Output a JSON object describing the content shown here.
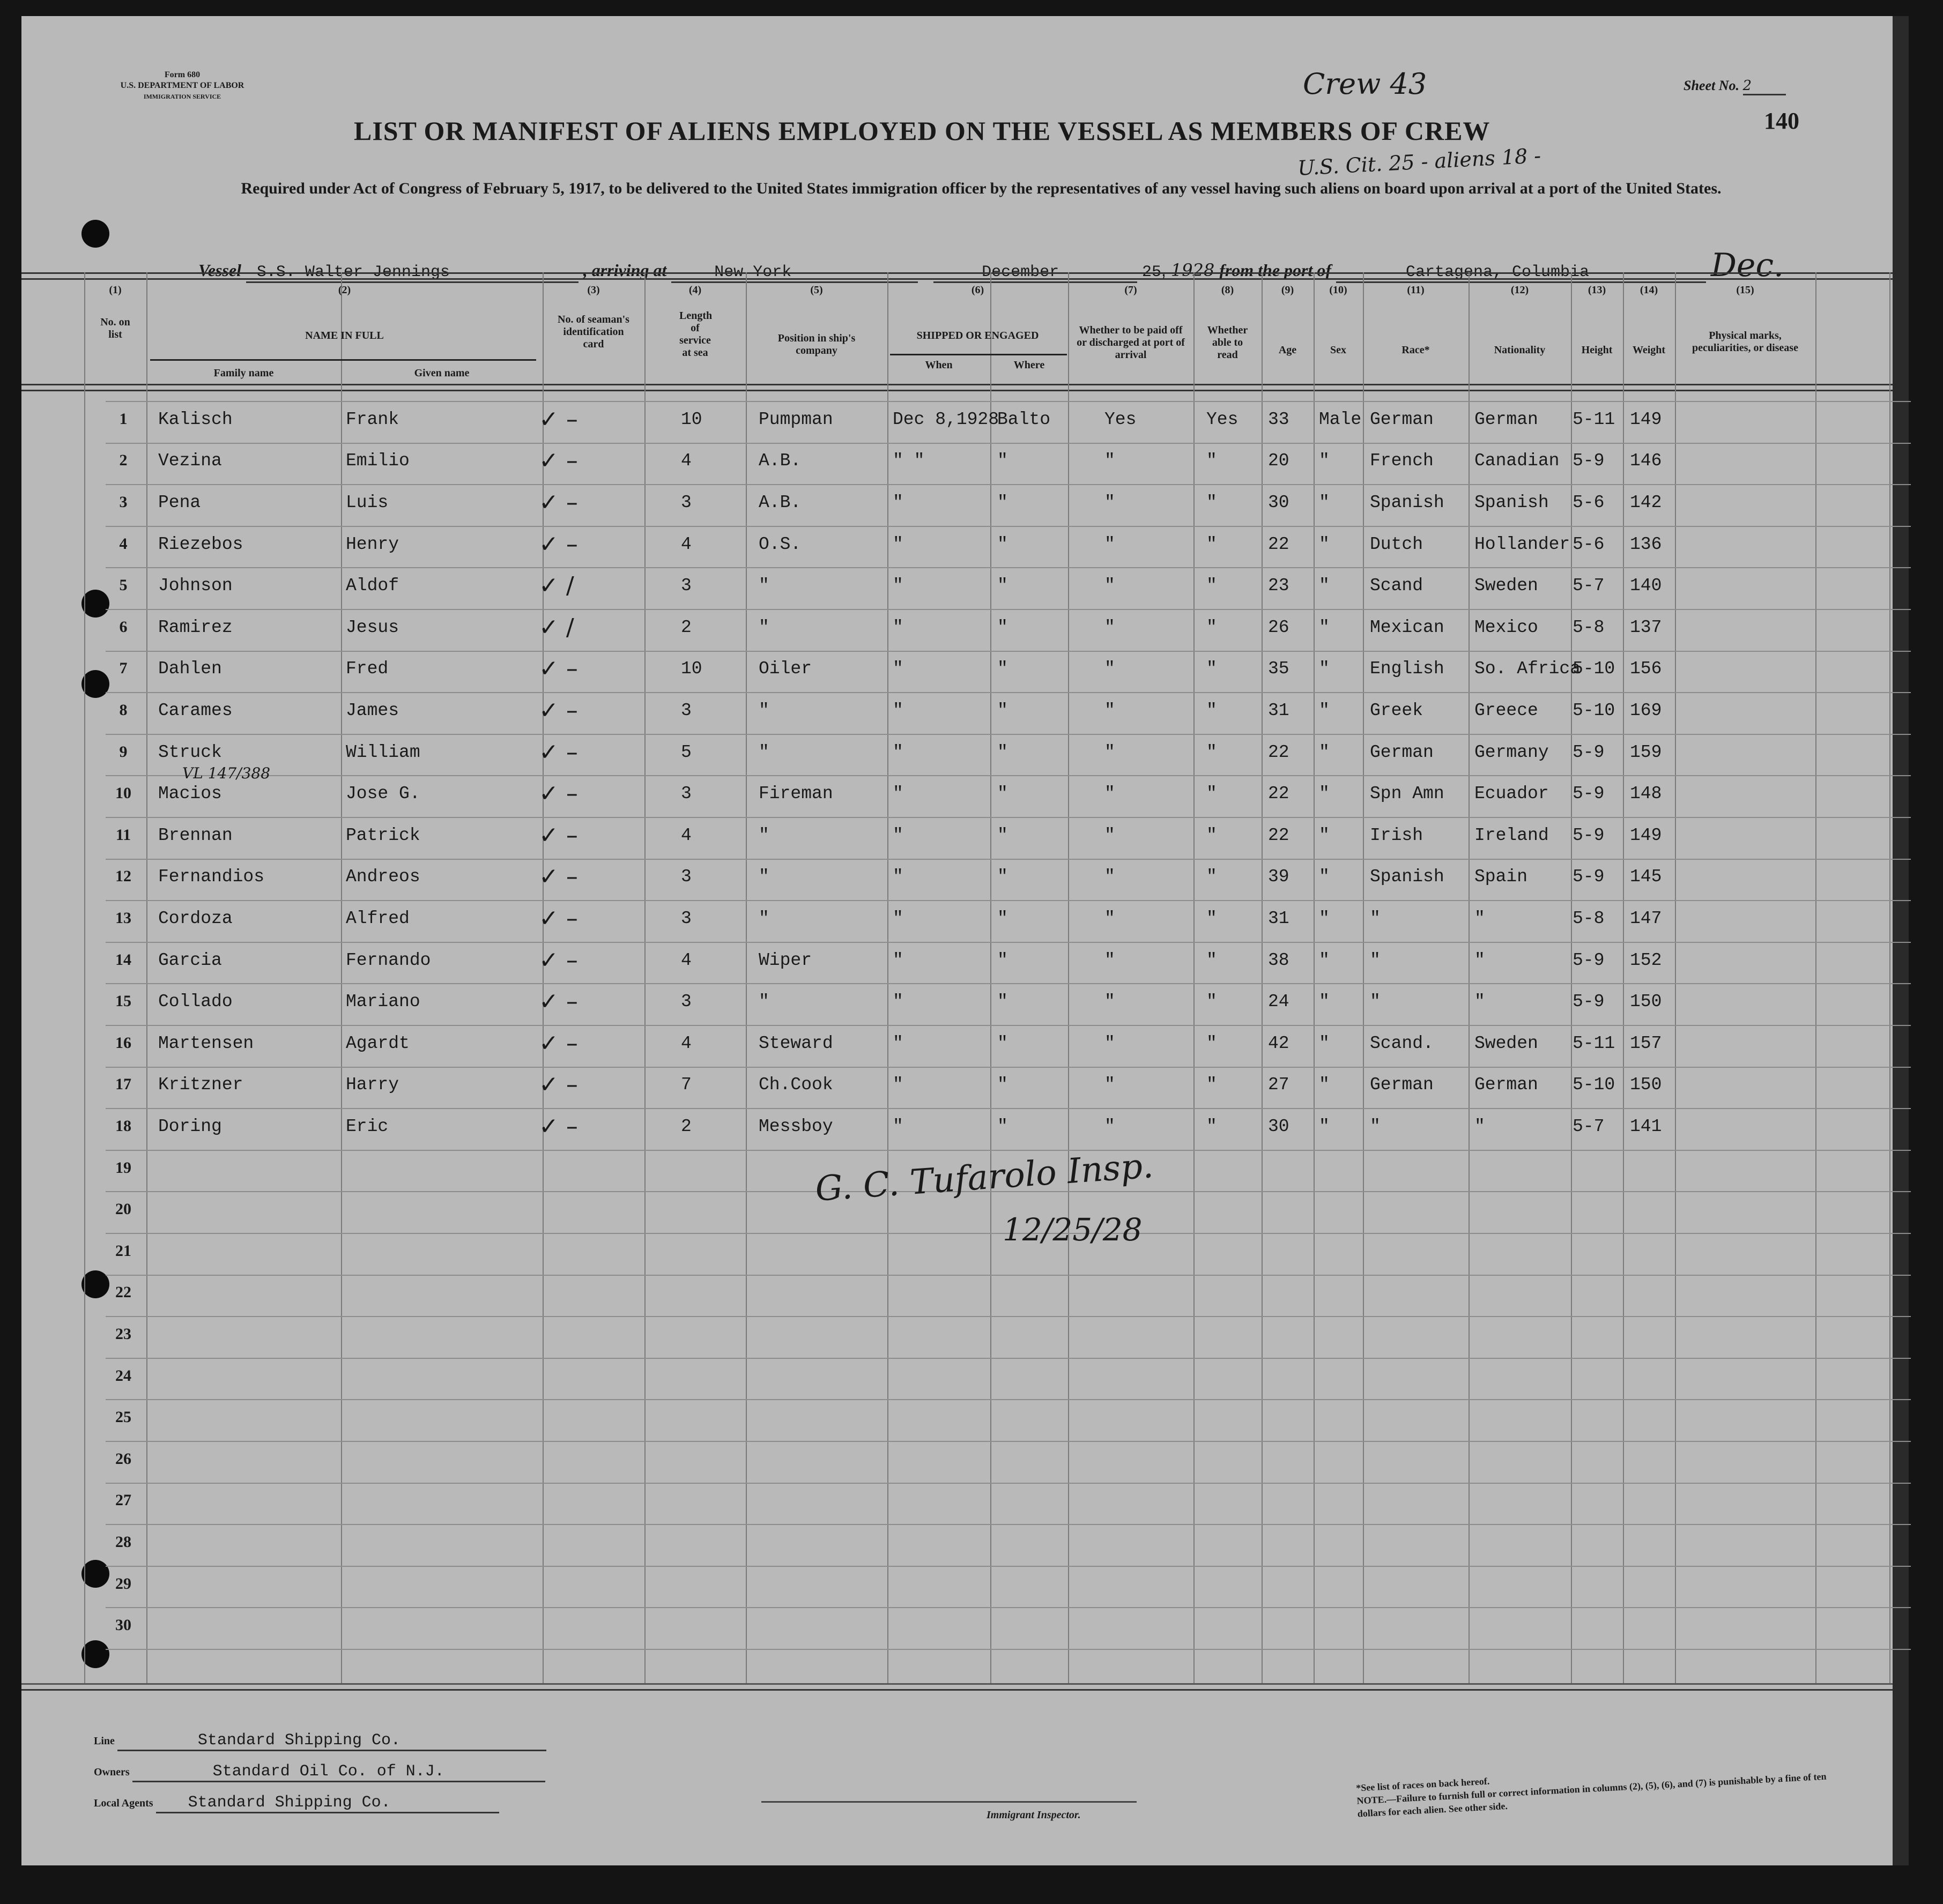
{
  "form": {
    "form_no": "Form 680",
    "department": "U.S. DEPARTMENT OF LABOR",
    "service": "IMMIGRATION SERVICE",
    "crew_note": "Crew 43",
    "sheet_label": "Sheet No.",
    "sheet_no": "2",
    "stamp_no": "140",
    "title": "LIST OR MANIFEST OF ALIENS EMPLOYED ON THE VESSEL AS MEMBERS OF CREW",
    "count_note": "U.S. Cit. 25 - aliens 18 -",
    "subtitle": "Required under Act of Congress of February 5, 1917, to be delivered to the United States immigration officer by the representatives of any vessel having such aliens on board upon arrival at a port of the United States."
  },
  "voyage": {
    "vessel_label": "Vessel",
    "vessel": "S.S. Walter Jennings",
    "arriving_label": ", arriving at",
    "arriving": "New York",
    "month": "December",
    "day": "25",
    "year": "1928",
    "from_label": "from the port of",
    "port": "Cartagena, Columbia",
    "month_note": "Dec."
  },
  "columns": {
    "nums": [
      "(1)",
      "(2)",
      "(3)",
      "(4)",
      "(5)",
      "(6)",
      "(7)",
      "(8)",
      "(9)",
      "(10)",
      "(11)",
      "(12)",
      "(13)",
      "(14)",
      "(15)"
    ],
    "no_on_list": "No. on list",
    "name_in_full": "NAME IN FULL",
    "family_name": "Family name",
    "given_name": "Given name",
    "id_card": "No. of seaman's identification card",
    "length_service": "Length of service at sea",
    "position": "Position in ship's company",
    "shipped": "SHIPPED OR ENGAGED",
    "when": "When",
    "where": "Where",
    "paid_off": "Whether to be paid off or discharged at port of arrival",
    "able_read": "Whether able to read",
    "age": "Age",
    "sex": "Sex",
    "race": "Race*",
    "nationality": "Nationality",
    "height": "Height",
    "weight": "Weight",
    "physical": "Physical marks, peculiarities, or disease"
  },
  "rows": [
    {
      "no": "1",
      "family": "Kalisch",
      "given": "Frank",
      "id": "✓ –",
      "service": "10",
      "position": "Pumpman",
      "when": "Dec 8,1928",
      "where": "Balto",
      "paid": "Yes",
      "read": "Yes",
      "age": "33",
      "sex": "Male",
      "race": "German",
      "nationality": "German",
      "height": "5-11",
      "weight": "149"
    },
    {
      "no": "2",
      "family": "Vezina",
      "given": "Emilio",
      "id": "✓ –",
      "service": "4",
      "position": "A.B.",
      "when": "\"  \"",
      "where": "\"",
      "paid": "\"",
      "read": "\"",
      "age": "20",
      "sex": "\"",
      "race": "French",
      "nationality": "Canadian",
      "height": "5-9",
      "weight": "146"
    },
    {
      "no": "3",
      "family": "Pena",
      "given": "Luis",
      "id": "✓ –",
      "service": "3",
      "position": "A.B.",
      "when": "\"",
      "where": "\"",
      "paid": "\"",
      "read": "\"",
      "age": "30",
      "sex": "\"",
      "race": "Spanish",
      "nationality": "Spanish",
      "height": "5-6",
      "weight": "142"
    },
    {
      "no": "4",
      "family": "Riezebos",
      "given": "Henry",
      "id": "✓ –",
      "service": "4",
      "position": "O.S.",
      "when": "\"",
      "where": "\"",
      "paid": "\"",
      "read": "\"",
      "age": "22",
      "sex": "\"",
      "race": "Dutch",
      "nationality": "Hollander",
      "height": "5-6",
      "weight": "136"
    },
    {
      "no": "5",
      "family": "Johnson",
      "given": "Aldof",
      "id": "✓ /",
      "service": "3",
      "position": "\"",
      "when": "\"",
      "where": "\"",
      "paid": "\"",
      "read": "\"",
      "age": "23",
      "sex": "\"",
      "race": "Scand",
      "nationality": "Sweden",
      "height": "5-7",
      "weight": "140"
    },
    {
      "no": "6",
      "family": "Ramirez",
      "given": "Jesus",
      "id": "✓ /",
      "service": "2",
      "position": "\"",
      "when": "\"",
      "where": "\"",
      "paid": "\"",
      "read": "\"",
      "age": "26",
      "sex": "\"",
      "race": "Mexican",
      "nationality": "Mexico",
      "height": "5-8",
      "weight": "137"
    },
    {
      "no": "7",
      "family": "Dahlen",
      "given": "Fred",
      "id": "✓ –",
      "service": "10",
      "position": "Oiler",
      "when": "\"",
      "where": "\"",
      "paid": "\"",
      "read": "\"",
      "age": "35",
      "sex": "\"",
      "race": "English",
      "nationality": "So. Africa",
      "height": "5-10",
      "weight": "156"
    },
    {
      "no": "8",
      "family": "Carames",
      "given": "James",
      "id": "✓ –",
      "service": "3",
      "position": "\"",
      "when": "\"",
      "where": "\"",
      "paid": "\"",
      "read": "\"",
      "age": "31",
      "sex": "\"",
      "race": "Greek",
      "nationality": "Greece",
      "height": "5-10",
      "weight": "169"
    },
    {
      "no": "9",
      "family": "Struck",
      "given": "William",
      "id": "✓ –",
      "service": "5",
      "position": "\"",
      "when": "\"",
      "where": "\"",
      "paid": "\"",
      "read": "\"",
      "age": "22",
      "sex": "\"",
      "race": "German",
      "nationality": "Germany",
      "height": "5-9",
      "weight": "159"
    },
    {
      "no": "10",
      "family": "Macios",
      "given": "Jose G.",
      "id": "✓ –",
      "service": "3",
      "position": "Fireman",
      "when": "\"",
      "where": "\"",
      "paid": "\"",
      "read": "\"",
      "age": "22",
      "sex": "\"",
      "race": "Spn Amn",
      "nationality": "Ecuador",
      "height": "5-9",
      "weight": "148",
      "note": "VL 147/388"
    },
    {
      "no": "11",
      "family": "Brennan",
      "given": "Patrick",
      "id": "✓ –",
      "service": "4",
      "position": "\"",
      "when": "\"",
      "where": "\"",
      "paid": "\"",
      "read": "\"",
      "age": "22",
      "sex": "\"",
      "race": "Irish",
      "nationality": "Ireland",
      "height": "5-9",
      "weight": "149"
    },
    {
      "no": "12",
      "family": "Fernandios",
      "given": "Andreos",
      "id": "✓ –",
      "service": "3",
      "position": "\"",
      "when": "\"",
      "where": "\"",
      "paid": "\"",
      "read": "\"",
      "age": "39",
      "sex": "\"",
      "race": "Spanish",
      "nationality": "Spain",
      "height": "5-9",
      "weight": "145"
    },
    {
      "no": "13",
      "family": "Cordoza",
      "given": "Alfred",
      "id": "✓ –",
      "service": "3",
      "position": "\"",
      "when": "\"",
      "where": "\"",
      "paid": "\"",
      "read": "\"",
      "age": "31",
      "sex": "\"",
      "race": "\"",
      "nationality": "\"",
      "height": "5-8",
      "weight": "147"
    },
    {
      "no": "14",
      "family": "Garcia",
      "given": "Fernando",
      "id": "✓ –",
      "service": "4",
      "position": "Wiper",
      "when": "\"",
      "where": "\"",
      "paid": "\"",
      "read": "\"",
      "age": "38",
      "sex": "\"",
      "race": "\"",
      "nationality": "\"",
      "height": "5-9",
      "weight": "152"
    },
    {
      "no": "15",
      "family": "Collado",
      "given": "Mariano",
      "id": "✓ –",
      "service": "3",
      "position": "\"",
      "when": "\"",
      "where": "\"",
      "paid": "\"",
      "read": "\"",
      "age": "24",
      "sex": "\"",
      "race": "\"",
      "nationality": "\"",
      "height": "5-9",
      "weight": "150"
    },
    {
      "no": "16",
      "family": "Martensen",
      "given": "Agardt",
      "id": "✓ –",
      "service": "4",
      "position": "Steward",
      "when": "\"",
      "where": "\"",
      "paid": "\"",
      "read": "\"",
      "age": "42",
      "sex": "\"",
      "race": "Scand.",
      "nationality": "Sweden",
      "height": "5-11",
      "weight": "157"
    },
    {
      "no": "17",
      "family": "Kritzner",
      "given": "Harry",
      "id": "✓ –",
      "service": "7",
      "position": "Ch.Cook",
      "when": "\"",
      "where": "\"",
      "paid": "\"",
      "read": "\"",
      "age": "27",
      "sex": "\"",
      "race": "German",
      "nationality": "German",
      "height": "5-10",
      "weight": "150"
    },
    {
      "no": "18",
      "family": "Doring",
      "given": "Eric",
      "id": "✓ –",
      "service": "2",
      "position": "Messboy",
      "when": "\"",
      "where": "\"",
      "paid": "\"",
      "read": "\"",
      "age": "30",
      "sex": "\"",
      "race": "\"",
      "nationality": "\"",
      "height": "5-7",
      "weight": "141"
    }
  ],
  "empty_row_numbers": [
    "19",
    "20",
    "21",
    "22",
    "23",
    "24",
    "25",
    "26",
    "27",
    "28",
    "29",
    "30"
  ],
  "signature": {
    "name": "G. C. Tufarolo Insp.",
    "date": "12/25/28"
  },
  "footer": {
    "line_label": "Line",
    "line": "Standard Shipping Co.",
    "owners_label": "Owners",
    "owners": "Standard Oil Co. of N.J.",
    "agents_label": "Local Agents",
    "agents": "Standard Shipping Co.",
    "inspector_label": "Immigrant Inspector.",
    "races_note": "*See list of races on back hereof.",
    "note": "NOTE.—Failure to furnish full or correct information in columns (2), (5), (6), and (7) is punishable by a fine of ten dollars for each alien. See other side."
  }
}
